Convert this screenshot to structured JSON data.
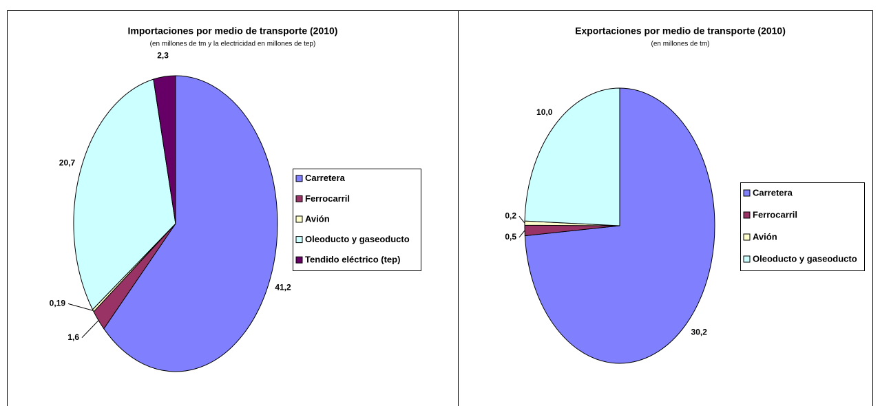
{
  "chart_data": [
    {
      "type": "pie",
      "title": "Importaciones por medio de transporte (2010)",
      "subtitle": "(en millones de tm y la electricidad en millones de tep)",
      "categories": [
        "Carretera",
        "Ferrocarril",
        "Avión",
        "Oleoducto y gaseoducto",
        "Tendido eléctrico (tep)"
      ],
      "values": [
        41.2,
        1.6,
        0.19,
        20.7,
        2.3
      ],
      "value_labels": [
        "41,2",
        "1,6",
        "0,19",
        "20,7",
        "2,3"
      ],
      "colors": [
        "#8080ff",
        "#993366",
        "#ffffcc",
        "#ccffff",
        "#660066"
      ]
    },
    {
      "type": "pie",
      "title": "Exportaciones por medio de transporte (2010)",
      "subtitle": "(en millones de tm)",
      "categories": [
        "Carretera",
        "Ferrocarril",
        "Avión",
        "Oleoducto y gaseoducto"
      ],
      "values": [
        30.2,
        0.5,
        0.2,
        10.0
      ],
      "value_labels": [
        "30,2",
        "0,5",
        "0,2",
        "10,0"
      ],
      "colors": [
        "#8080ff",
        "#993366",
        "#ffffcc",
        "#ccffff"
      ]
    }
  ]
}
